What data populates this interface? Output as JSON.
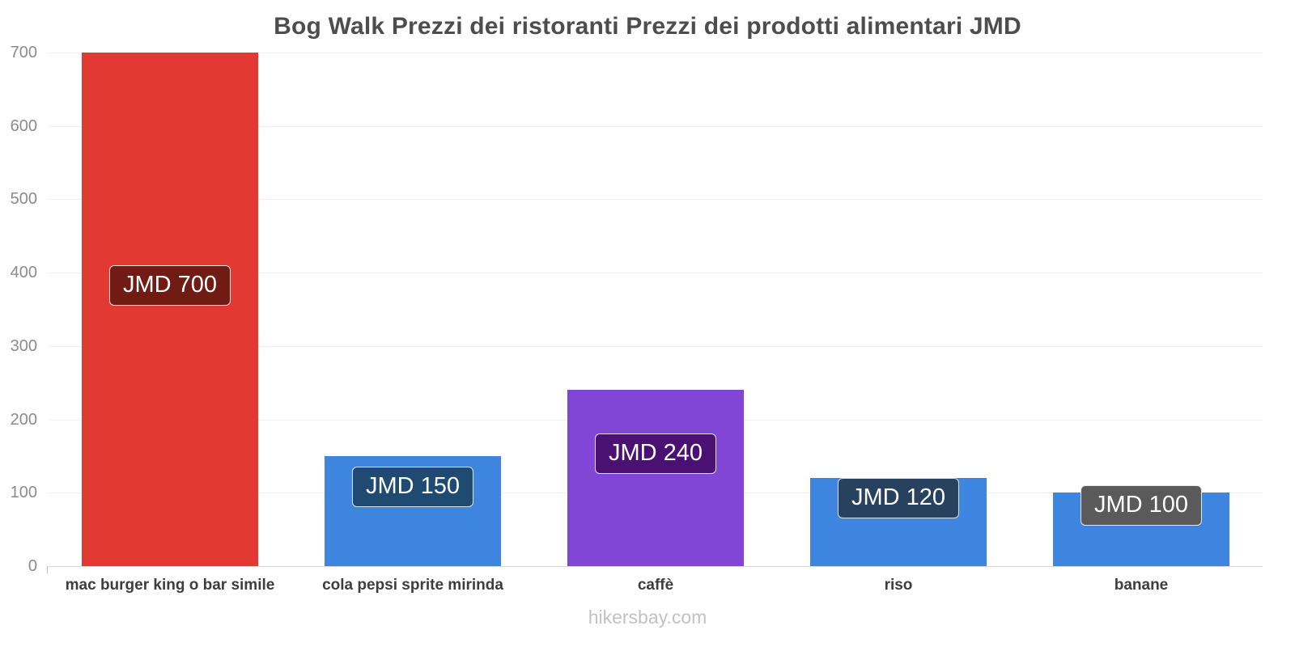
{
  "footer": {
    "watermark": "hikersbay.com"
  },
  "chart_data": {
    "type": "bar",
    "title": "Bog Walk Prezzi dei ristoranti Prezzi dei prodotti alimentari JMD",
    "currency": "JMD",
    "categories": [
      "mac burger king o bar simile",
      "cola pepsi sprite mirinda",
      "caffè",
      "riso",
      "banane"
    ],
    "values": [
      700,
      150,
      240,
      120,
      100
    ],
    "value_labels": [
      "JMD 700",
      "JMD 150",
      "JMD 240",
      "JMD 120",
      "JMD 100"
    ],
    "bar_colors": [
      "#e23933",
      "#3d85df",
      "#8246d7",
      "#3d85df",
      "#3d85df"
    ],
    "badge_colors": [
      "#701c15",
      "#1f4a72",
      "#4a1173",
      "#27415f",
      "#5a5a5a"
    ],
    "xlabel": "",
    "ylabel": "",
    "ylim": [
      0,
      700
    ],
    "yticks": [
      0,
      100,
      200,
      300,
      400,
      500,
      600,
      700
    ],
    "grid": "horizontal",
    "legend": "none"
  }
}
